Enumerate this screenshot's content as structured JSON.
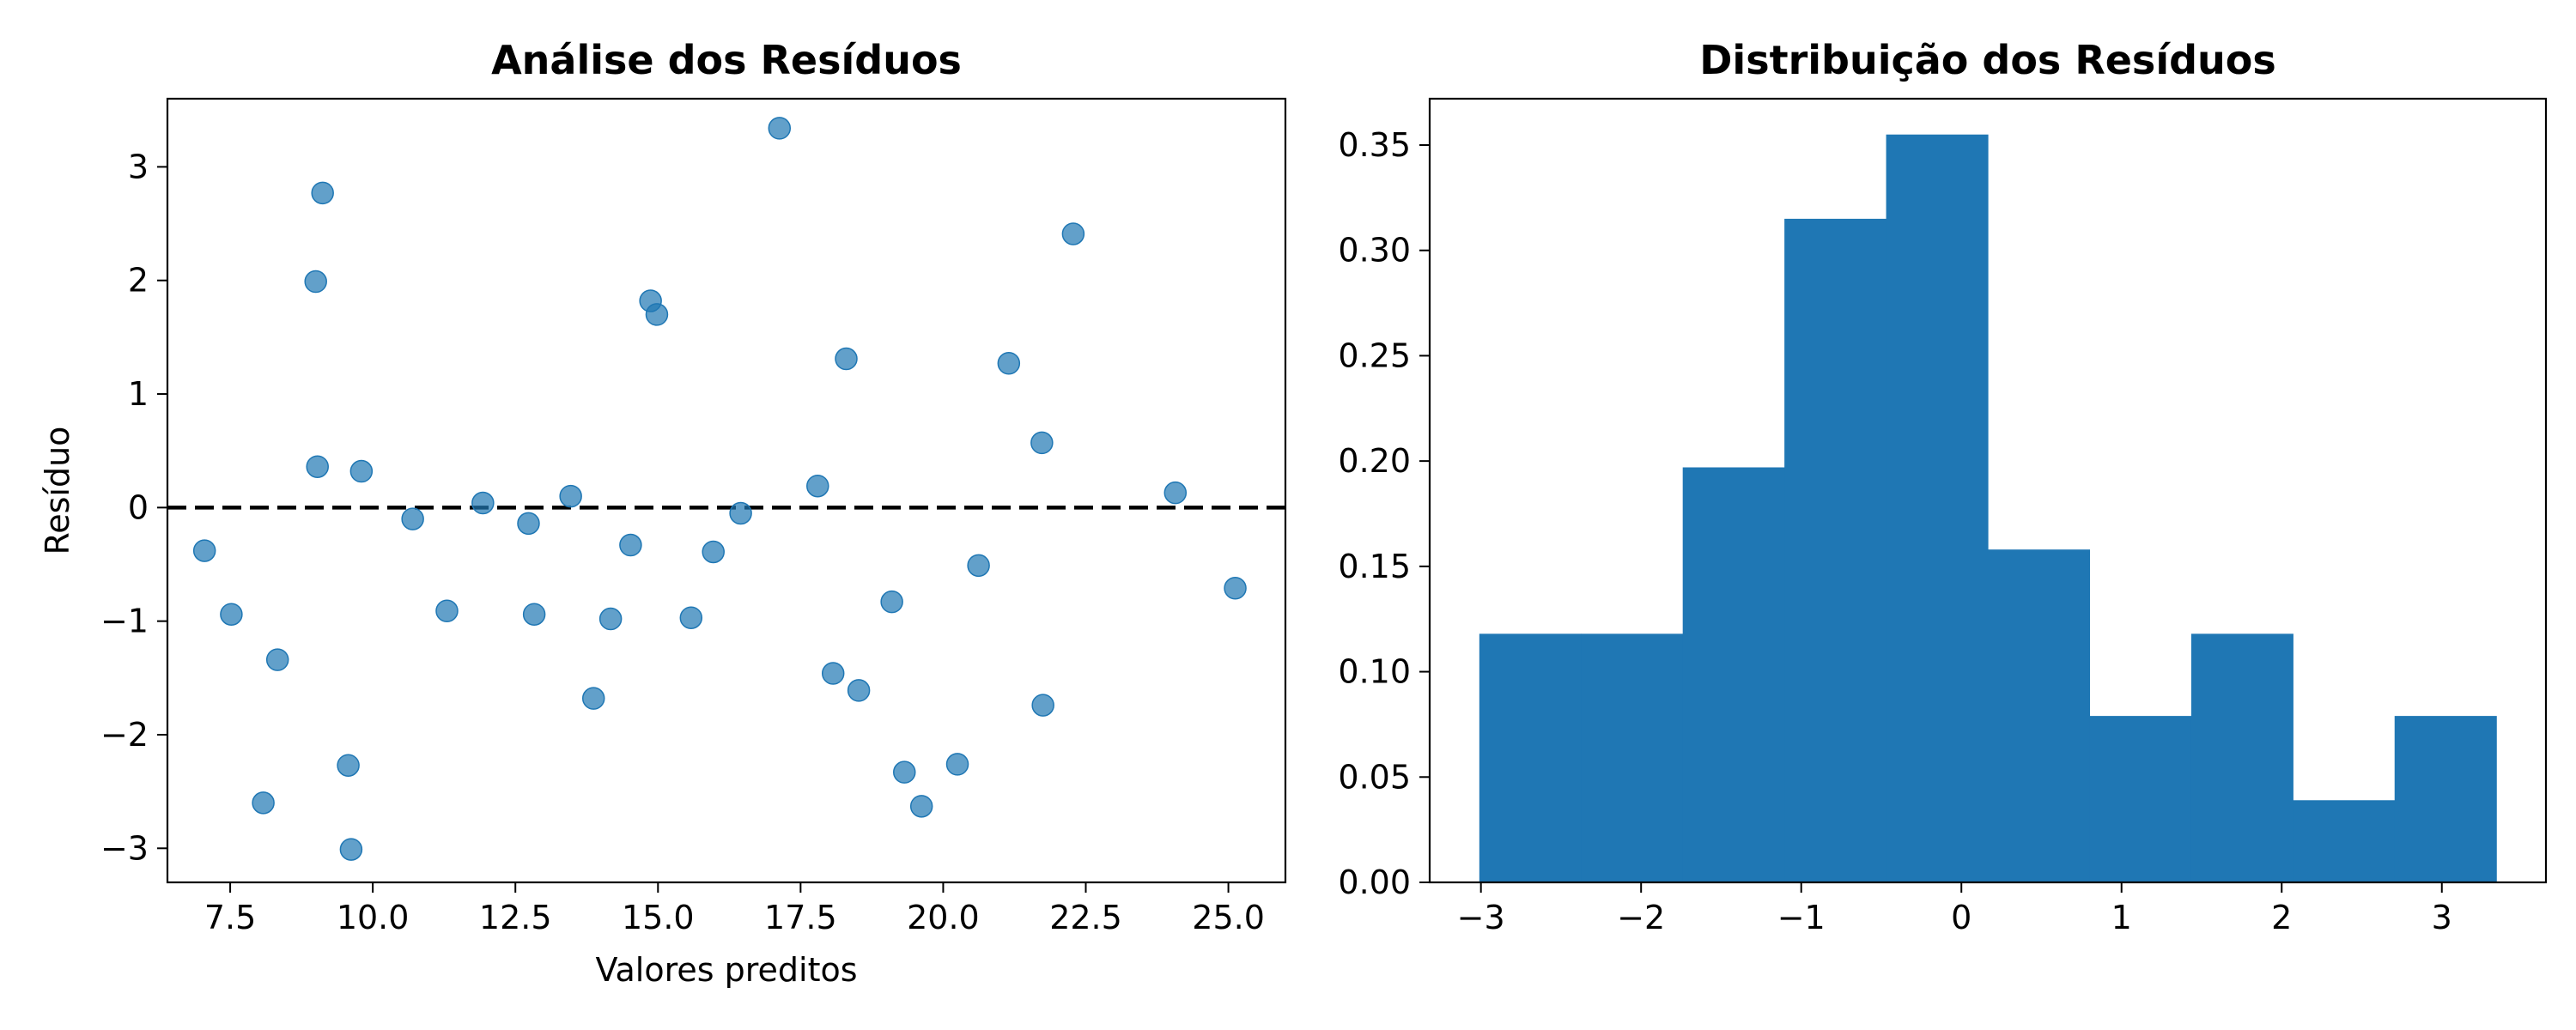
{
  "chart_data": [
    {
      "type": "scatter",
      "title": "Análise dos Resíduos",
      "xlabel": "Valores preditos",
      "ylabel": "Resíduo",
      "xlim": [
        6.4,
        26.0
      ],
      "ylim": [
        -3.3,
        3.6
      ],
      "xticks": [
        7.5,
        10.0,
        12.5,
        15.0,
        17.5,
        20.0,
        22.5,
        25.0
      ],
      "xtick_labels": [
        "7.5",
        "10.0",
        "12.5",
        "15.0",
        "17.5",
        "20.0",
        "22.5",
        "25.0"
      ],
      "yticks": [
        -3,
        -2,
        -1,
        0,
        1,
        2,
        3
      ],
      "ytick_labels": [
        "−3",
        "−2",
        "−1",
        "0",
        "1",
        "2",
        "3"
      ],
      "reference_line": {
        "y": 0,
        "style": "dashed",
        "color": "#000000"
      },
      "point_color": "#1f77b4",
      "point_alpha": 0.7,
      "points": [
        {
          "x": 7.05,
          "y": -0.38
        },
        {
          "x": 7.52,
          "y": -0.94
        },
        {
          "x": 8.08,
          "y": -2.6
        },
        {
          "x": 8.33,
          "y": -1.34
        },
        {
          "x": 9.0,
          "y": 1.99
        },
        {
          "x": 9.03,
          "y": 0.36
        },
        {
          "x": 9.12,
          "y": 2.77
        },
        {
          "x": 9.57,
          "y": -2.27
        },
        {
          "x": 9.62,
          "y": -3.01
        },
        {
          "x": 9.8,
          "y": 0.32
        },
        {
          "x": 10.7,
          "y": -0.1
        },
        {
          "x": 11.3,
          "y": -0.91
        },
        {
          "x": 11.93,
          "y": 0.04
        },
        {
          "x": 12.73,
          "y": -0.14
        },
        {
          "x": 12.83,
          "y": -0.94
        },
        {
          "x": 13.47,
          "y": 0.1
        },
        {
          "x": 13.87,
          "y": -1.68
        },
        {
          "x": 14.17,
          "y": -0.98
        },
        {
          "x": 14.52,
          "y": -0.33
        },
        {
          "x": 14.87,
          "y": 1.82
        },
        {
          "x": 14.98,
          "y": 1.7
        },
        {
          "x": 15.58,
          "y": -0.97
        },
        {
          "x": 15.97,
          "y": -0.39
        },
        {
          "x": 16.45,
          "y": -0.05
        },
        {
          "x": 17.13,
          "y": 3.34
        },
        {
          "x": 17.8,
          "y": 0.19
        },
        {
          "x": 18.07,
          "y": -1.46
        },
        {
          "x": 18.3,
          "y": 1.31
        },
        {
          "x": 18.52,
          "y": -1.61
        },
        {
          "x": 19.1,
          "y": -0.83
        },
        {
          "x": 19.32,
          "y": -2.33
        },
        {
          "x": 19.62,
          "y": -2.63
        },
        {
          "x": 20.25,
          "y": -2.26
        },
        {
          "x": 20.62,
          "y": -0.51
        },
        {
          "x": 21.15,
          "y": 1.27
        },
        {
          "x": 21.73,
          "y": 0.57
        },
        {
          "x": 21.75,
          "y": -1.74
        },
        {
          "x": 22.28,
          "y": 2.41
        },
        {
          "x": 24.07,
          "y": 0.13
        },
        {
          "x": 25.12,
          "y": -0.71
        }
      ]
    },
    {
      "type": "bar",
      "subtype": "histogram",
      "title": "Distribuição dos Resíduos",
      "xlabel": "",
      "ylabel": "",
      "xlim": [
        -3.32,
        3.65
      ],
      "ylim": [
        0,
        0.372
      ],
      "xticks": [
        -3,
        -2,
        -1,
        0,
        1,
        2,
        3
      ],
      "xtick_labels": [
        "−3",
        "−2",
        "−1",
        "0",
        "1",
        "2",
        "3"
      ],
      "yticks": [
        0.0,
        0.05,
        0.1,
        0.15,
        0.2,
        0.25,
        0.3,
        0.35
      ],
      "ytick_labels": [
        "0.00",
        "0.05",
        "0.10",
        "0.15",
        "0.20",
        "0.25",
        "0.30",
        "0.35"
      ],
      "bar_color": "#1f77b4",
      "bins": [
        {
          "start": -3.01,
          "end": -2.375,
          "density": 0.118
        },
        {
          "start": -2.375,
          "end": -1.74,
          "density": 0.118
        },
        {
          "start": -1.74,
          "end": -1.105,
          "density": 0.197
        },
        {
          "start": -1.105,
          "end": -0.47,
          "density": 0.315
        },
        {
          "start": -0.47,
          "end": 0.165,
          "density": 0.355
        },
        {
          "start": 0.165,
          "end": 0.8,
          "density": 0.158
        },
        {
          "start": 0.8,
          "end": 1.435,
          "density": 0.079
        },
        {
          "start": 1.435,
          "end": 2.07,
          "density": 0.118
        },
        {
          "start": 2.07,
          "end": 2.705,
          "density": 0.039
        },
        {
          "start": 2.705,
          "end": 3.34,
          "density": 0.079
        }
      ]
    }
  ]
}
